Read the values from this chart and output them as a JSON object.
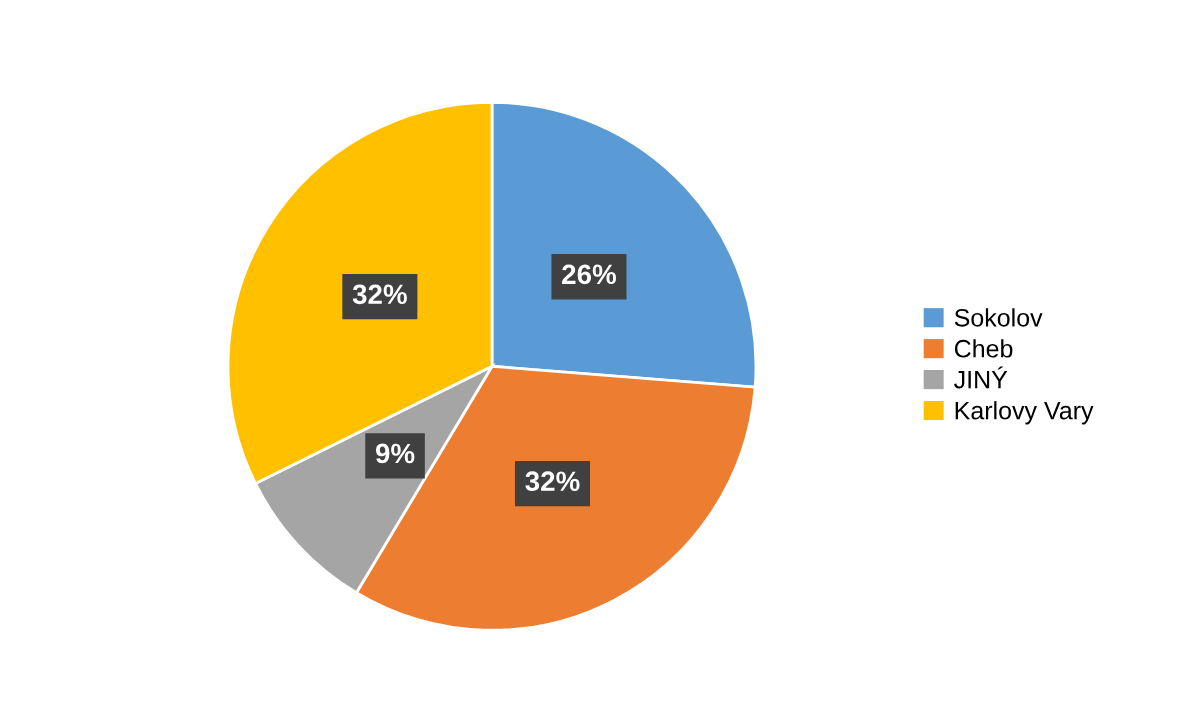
{
  "chart_data": {
    "type": "pie",
    "categories": [
      "Sokolov",
      "Cheb",
      "JINÝ",
      "Karlovy Vary"
    ],
    "values": [
      26,
      32,
      9,
      32
    ],
    "value_labels": [
      "26%",
      "32%",
      "9%",
      "32%"
    ],
    "colors": [
      "#5b9bd5",
      "#ed7d31",
      "#a5a5a5",
      "#ffc000"
    ],
    "legend": "right"
  }
}
